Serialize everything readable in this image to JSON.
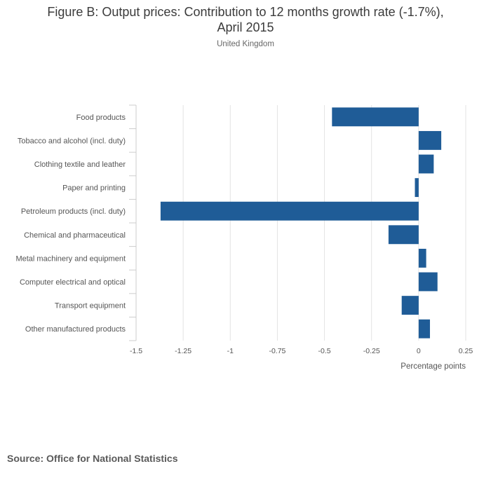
{
  "header": {
    "title_line1": "Figure B: Output prices: Contribution to 12 months growth rate (-1.7%),",
    "title_line2": "April 2015",
    "subtitle": "United Kingdom"
  },
  "footer": {
    "source": "Source: Office for National Statistics"
  },
  "colors": {
    "bar": "#1f5c97",
    "grid": "#e3e3e3",
    "axis": "#cccccc"
  },
  "chart_data": {
    "type": "bar",
    "orientation": "horizontal",
    "title": "Figure B: Output prices: Contribution to 12 months growth rate (-1.7%), April 2015",
    "subtitle": "United Kingdom",
    "xlabel": "Percentage points",
    "ylabel": "",
    "xlim": [
      -1.5,
      0.25
    ],
    "xticks": [
      -1.5,
      -1.25,
      -1,
      -0.75,
      -0.5,
      -0.25,
      0,
      0.25
    ],
    "xtick_labels": [
      "-1.5",
      "-1.25",
      "-1",
      "-0.75",
      "-0.5",
      "-0.25",
      "0",
      "0.25"
    ],
    "grid": true,
    "categories": [
      "Food products",
      "Tobacco and alcohol (incl. duty)",
      "Clothing textile and leather",
      "Paper and printing",
      "Petroleum products (incl. duty)",
      "Chemical and pharmaceutical",
      "Metal machinery and equipment",
      "Computer electrical and optical",
      "Transport equipment",
      "Other manufactured products"
    ],
    "values": [
      -0.46,
      0.12,
      0.08,
      -0.02,
      -1.37,
      -0.16,
      0.04,
      0.1,
      -0.09,
      0.06
    ]
  }
}
